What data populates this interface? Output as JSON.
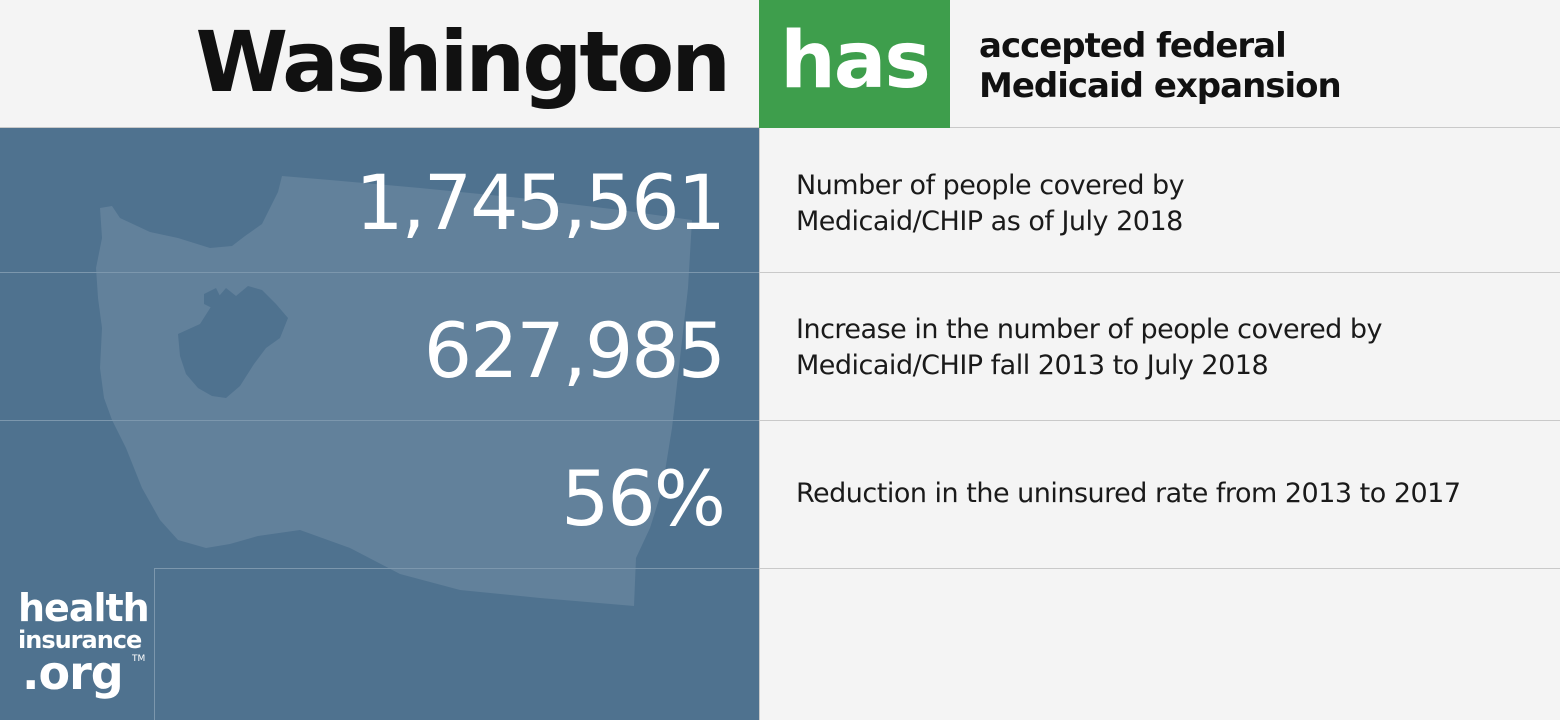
{
  "header": {
    "state_name": "Washington",
    "status_word": "has",
    "status_description": "accepted federal Medicaid expansion"
  },
  "stats": [
    {
      "value": "1,745,561",
      "label_line1": "Number of people covered by",
      "label_line2": "Medicaid/CHIP as of July 2018"
    },
    {
      "value": "627,985",
      "label_line1": "Increase in the number of people covered by",
      "label_line2": "Medicaid/CHIP fall 2013 to July 2018"
    },
    {
      "value": "56%",
      "label_line1": "Reduction in the uninsured rate from 2013 to 2017",
      "label_line2": ""
    }
  ],
  "logo": {
    "line1": "health",
    "line2": "insurance",
    "line3": ".org",
    "tm": "TM"
  },
  "colors": {
    "status_green": "#3e9e4c",
    "panel_blue": "#4f728f",
    "map_fill": "#62819b",
    "background": "#f4f4f4"
  },
  "icons": {
    "map": "washington-state-map-silhouette"
  }
}
